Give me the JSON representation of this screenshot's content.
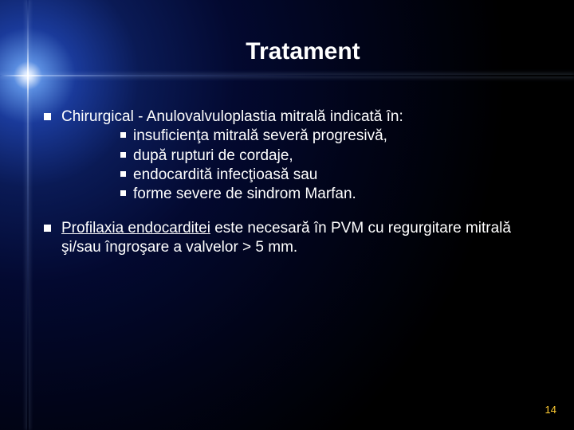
{
  "title": "Tratament",
  "items": [
    {
      "main": "Chirurgical - Anulovalvuloplastia mitrală indicată în:",
      "sub": [
        "insuficienţa mitrală severă progresivă,",
        "după rupturi de cordaje,",
        "endocardită infecţioasă sau",
        "forme severe de sindrom Marfan."
      ]
    },
    {
      "main_html": "<span class=\"u\">Profilaxia endocarditei</span> este necesară în PVM cu regurgitare mitrală şi/sau îngroşare a valvelor > 5 mm.",
      "sub": []
    }
  ],
  "page_number": "14"
}
